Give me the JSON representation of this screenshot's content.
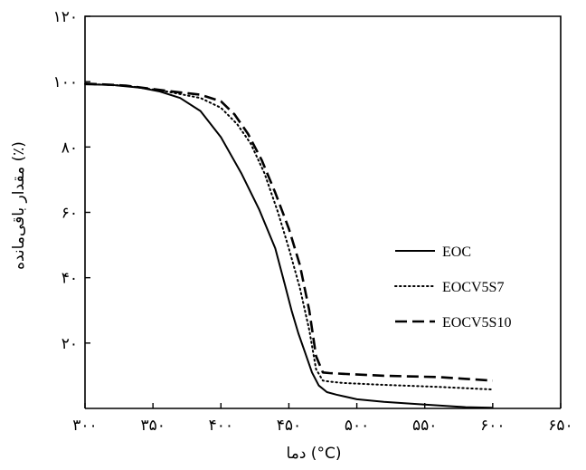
{
  "chart_data": {
    "type": "line",
    "xlabel": "دما (°C)",
    "ylabel": "مقدار باقی‌مانده (٪)",
    "xlim": [
      300,
      650
    ],
    "ylim": [
      0,
      120
    ],
    "x_ticks": [
      300,
      350,
      400,
      450,
      500,
      550,
      600,
      650
    ],
    "x_tick_labels": [
      "۳۰۰",
      "۳۵۰",
      "۴۰۰",
      "۴۵۰",
      "۵۰۰",
      "۵۵۰",
      "۶۰۰",
      "۶۵۰"
    ],
    "y_ticks": [
      20,
      40,
      60,
      80,
      100,
      120
    ],
    "y_tick_labels": [
      "۲۰",
      "۴۰",
      "۶۰",
      "۸۰",
      "۱۰۰",
      "۱۲۰"
    ],
    "legend_position": "right",
    "series": [
      {
        "name": "EOC",
        "style": "solid",
        "color": "#000000",
        "x": [
          300,
          320,
          340,
          355,
          370,
          385,
          400,
          415,
          428,
          440,
          447,
          452,
          457,
          462,
          467,
          472,
          478,
          485,
          500,
          520,
          550,
          580,
          600
        ],
        "y": [
          99.2,
          99.0,
          98.2,
          97.0,
          95.0,
          91.0,
          83.0,
          72.0,
          61.0,
          49.0,
          38.0,
          30.0,
          23.0,
          17.0,
          11.0,
          7.0,
          5.0,
          4.2,
          2.8,
          2.0,
          1.2,
          0.4,
          0.2
        ]
      },
      {
        "name": "EOCV5S7",
        "style": "dotted",
        "color": "#000000",
        "x": [
          300,
          330,
          360,
          385,
          400,
          412,
          422,
          432,
          442,
          450,
          458,
          465,
          470,
          475,
          480,
          490,
          520,
          560,
          600
        ],
        "y": [
          99.3,
          98.8,
          97.0,
          95.0,
          92.0,
          87.0,
          81.0,
          72.0,
          60.0,
          49.0,
          37.0,
          24.0,
          12.0,
          8.5,
          8.2,
          7.8,
          7.2,
          6.6,
          5.8
        ]
      },
      {
        "name": "EOCV5S10",
        "style": "dashed",
        "color": "#000000",
        "x": [
          300,
          330,
          360,
          385,
          400,
          410,
          420,
          430,
          440,
          450,
          458,
          465,
          470,
          475,
          480,
          490,
          520,
          560,
          600
        ],
        "y": [
          99.4,
          98.8,
          97.2,
          96.0,
          94.0,
          90.0,
          84.0,
          76.0,
          66.0,
          55.0,
          44.0,
          30.0,
          16.0,
          11.0,
          10.8,
          10.6,
          10.0,
          9.6,
          8.5
        ]
      }
    ]
  }
}
